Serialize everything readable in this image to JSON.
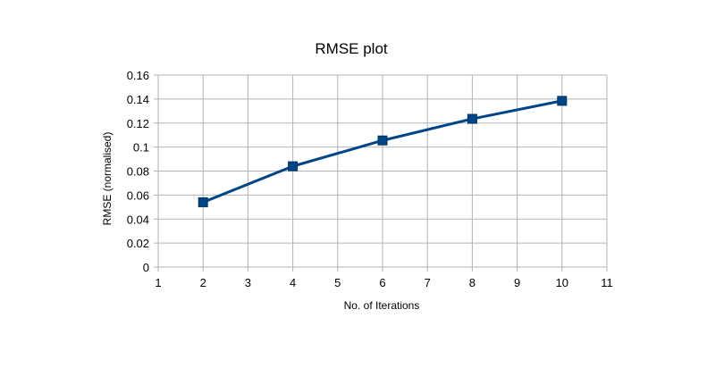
{
  "chart_data": {
    "type": "line",
    "title": "RMSE plot",
    "xlabel": "No. of Iterations",
    "ylabel": "RMSE (normalised)",
    "xlim": [
      1,
      11
    ],
    "ylim": [
      0,
      0.16
    ],
    "xticks": [
      1,
      2,
      3,
      4,
      5,
      6,
      7,
      8,
      9,
      10,
      11
    ],
    "yticks": [
      0,
      0.02,
      0.04,
      0.06,
      0.08,
      0.1,
      0.12,
      0.14,
      0.16
    ],
    "ytick_labels": [
      "0",
      "0.02",
      "0.04",
      "0.06",
      "0.08",
      "0.1",
      "0.12",
      "0.14",
      "0.16"
    ],
    "grid": true,
    "legend": "none",
    "series": [
      {
        "x": [
          2,
          4,
          6,
          8,
          10
        ],
        "values": [
          0.054,
          0.084,
          0.1055,
          0.1235,
          0.1385
        ],
        "color": "#004586",
        "marker": "square"
      }
    ]
  }
}
